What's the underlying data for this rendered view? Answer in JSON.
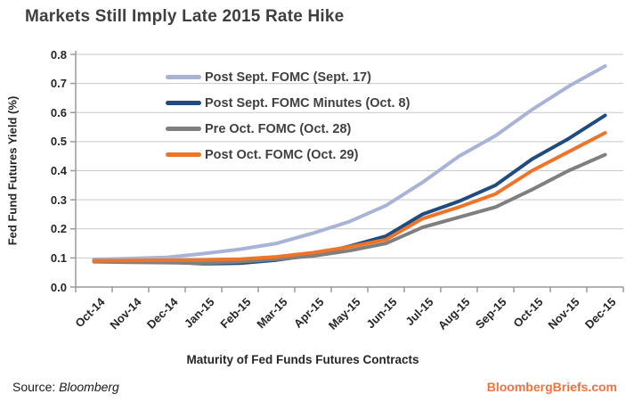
{
  "header": {
    "title": "Markets Still Imply Late 2015 Rate Hike"
  },
  "chart_data": {
    "type": "line",
    "title": "Markets Still Imply Late 2015 Rate Hike",
    "xlabel": "Maturity of Fed Funds Futures Contracts",
    "ylabel": "Fed Fund Futures Yield (%)",
    "ylim": [
      0.0,
      0.8
    ],
    "yticks": [
      "0.0",
      "0.1",
      "0.2",
      "0.3",
      "0.4",
      "0.5",
      "0.6",
      "0.7",
      "0.8"
    ],
    "grid": true,
    "legend_position": "top-left-inside",
    "categories": [
      "Oct-14",
      "Nov-14",
      "Dec-14",
      "Jan-15",
      "Feb-15",
      "Mar-15",
      "Apr-15",
      "May-15",
      "Jun-15",
      "Jul-15",
      "Aug-15",
      "Sep-15",
      "Oct-15",
      "Nov-15",
      "Dec-15"
    ],
    "series": [
      {
        "name": "Post Sept. FOMC (Sept. 17)",
        "color": "#a9b3d6",
        "values": [
          0.095,
          0.098,
          0.102,
          0.115,
          0.13,
          0.15,
          0.185,
          0.225,
          0.28,
          0.36,
          0.45,
          0.52,
          0.61,
          0.69,
          0.76
        ]
      },
      {
        "name": "Post Sept. FOMC Minutes (Oct. 8)",
        "color": "#1f4b7e",
        "values": [
          0.09,
          0.088,
          0.086,
          0.08,
          0.082,
          0.093,
          0.11,
          0.14,
          0.175,
          0.25,
          0.295,
          0.35,
          0.44,
          0.51,
          0.59
        ]
      },
      {
        "name": "Pre Oct. FOMC (Oct. 28)",
        "color": "#7f7f7f",
        "values": [
          0.087,
          0.085,
          0.084,
          0.082,
          0.087,
          0.096,
          0.107,
          0.125,
          0.15,
          0.205,
          0.24,
          0.275,
          0.335,
          0.4,
          0.455
        ]
      },
      {
        "name": "Post Oct. FOMC (Oct. 29)",
        "color": "#ed7429",
        "values": [
          0.09,
          0.091,
          0.092,
          0.093,
          0.096,
          0.104,
          0.118,
          0.138,
          0.163,
          0.235,
          0.275,
          0.32,
          0.4,
          0.465,
          0.53
        ]
      }
    ]
  },
  "footer": {
    "source_label": "Source:",
    "source_name": "Bloomberg",
    "brand": "BloombergBriefs.com"
  },
  "colors": {
    "title_text": "#3f3f3f",
    "axis_text": "#262626",
    "legend_text": "#404040",
    "grid_line": "#c9c9c9",
    "axis_line": "#9a9a9a",
    "brand_orange": "#f2713f"
  }
}
